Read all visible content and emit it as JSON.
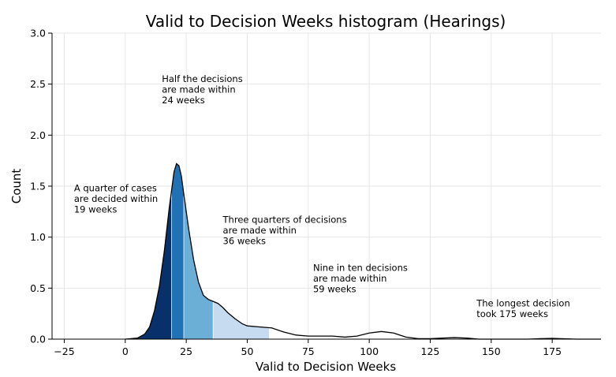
{
  "chart_data": {
    "type": "area",
    "title": "Valid to Decision Weeks histogram (Hearings)",
    "xlabel": "Valid to Decision Weeks",
    "ylabel": "Count",
    "xlim": [
      -30,
      195
    ],
    "ylim": [
      0,
      3.0
    ],
    "xticks": [
      -25,
      0,
      25,
      50,
      75,
      100,
      125,
      150,
      175
    ],
    "yticks": [
      0.0,
      0.5,
      1.0,
      1.5,
      2.0,
      2.5,
      3.0
    ],
    "xtick_labels": [
      "−25",
      "0",
      "25",
      "50",
      "75",
      "100",
      "125",
      "150",
      "175"
    ],
    "ytick_labels": [
      "0.0",
      "0.5",
      "1.0",
      "1.5",
      "2.0",
      "2.5",
      "3.0"
    ],
    "grid": true,
    "density_curve": {
      "x": [
        0,
        5,
        8,
        10,
        12,
        14,
        16,
        18,
        20,
        21,
        22,
        23,
        24,
        26,
        28,
        30,
        32,
        34,
        36,
        38,
        40,
        42,
        45,
        48,
        50,
        55,
        60,
        65,
        70,
        75,
        80,
        85,
        90,
        95,
        100,
        105,
        110,
        115,
        120,
        125,
        130,
        135,
        140,
        145,
        150,
        155,
        160,
        165,
        170,
        175,
        180,
        185,
        195
      ],
      "y": [
        0.0,
        0.01,
        0.05,
        0.12,
        0.28,
        0.52,
        0.86,
        1.28,
        1.64,
        1.72,
        1.7,
        1.6,
        1.42,
        1.08,
        0.78,
        0.56,
        0.43,
        0.39,
        0.37,
        0.35,
        0.31,
        0.26,
        0.2,
        0.15,
        0.13,
        0.12,
        0.11,
        0.07,
        0.04,
        0.03,
        0.03,
        0.03,
        0.02,
        0.03,
        0.06,
        0.075,
        0.06,
        0.02,
        0.005,
        0.005,
        0.01,
        0.015,
        0.01,
        0.0,
        0.0,
        0.0,
        0.0,
        0.0,
        0.005,
        0.008,
        0.004,
        0.0,
        0.0
      ]
    },
    "quantile_bands": [
      {
        "from": 0,
        "to": 19,
        "color": "#08306b"
      },
      {
        "from": 19,
        "to": 24,
        "color": "#2171b5"
      },
      {
        "from": 24,
        "to": 36,
        "color": "#6baed6"
      },
      {
        "from": 36,
        "to": 59,
        "color": "#c6dbef"
      }
    ],
    "annotations": [
      {
        "x": -21,
        "y": 1.45,
        "lines": [
          "A quarter of cases",
          "are decided within",
          "19 weeks"
        ]
      },
      {
        "x": 15,
        "y": 2.52,
        "lines": [
          "Half the decisions",
          "are made within",
          "24 weeks"
        ]
      },
      {
        "x": 40,
        "y": 1.14,
        "lines": [
          "Three quarters of decisions",
          "are made within",
          "36 weeks"
        ]
      },
      {
        "x": 77,
        "y": 0.67,
        "lines": [
          "Nine in ten decisions",
          "are made within",
          "59 weeks"
        ]
      },
      {
        "x": 144,
        "y": 0.32,
        "lines": [
          "The longest decision",
          "took 175 weeks"
        ]
      }
    ]
  }
}
